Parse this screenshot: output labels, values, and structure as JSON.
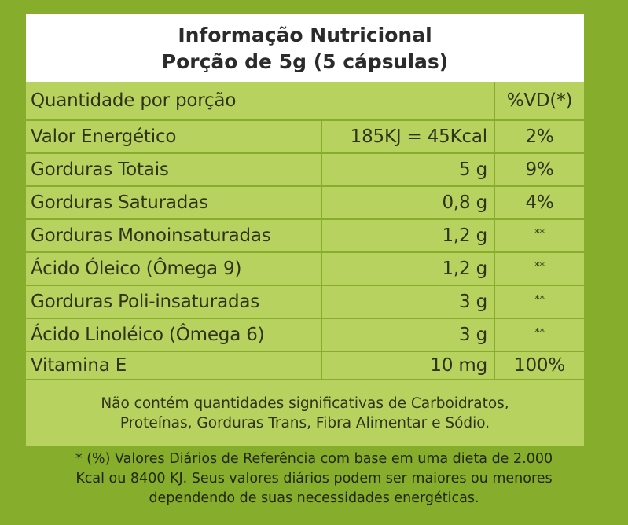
{
  "title": {
    "line1": "Informação Nutricional",
    "line2": "Porção de 5g (5 cápsulas)"
  },
  "header": {
    "quantity_label": "Quantidade por porção",
    "vd_label": "%VD(*)"
  },
  "rows": [
    {
      "name": "Valor Energético",
      "amount": "185KJ = 45Kcal",
      "vd": "2%"
    },
    {
      "name": "Gorduras Totais",
      "amount": "5 g",
      "vd": "9%"
    },
    {
      "name": "Gorduras Saturadas",
      "amount": "0,8 g",
      "vd": "4%"
    },
    {
      "name": "Gorduras Monoinsaturadas",
      "amount": "1,2 g",
      "vd": "**"
    },
    {
      "name": "Ácido Óleico (Ômega 9)",
      "amount": "1,2 g",
      "vd": "**"
    },
    {
      "name": "Gorduras Poli-insaturadas",
      "amount": "3 g",
      "vd": "**"
    },
    {
      "name": "Ácido Linoléico (Ômega 6)",
      "amount": "3 g",
      "vd": "**"
    },
    {
      "name": "Vitamina E",
      "amount": "10 mg",
      "vd": "100%"
    }
  ],
  "note": {
    "line1": "Não contém quantidades significativas de Carboidratos,",
    "line2": "Proteínas, Gorduras Trans, Fibra Alimentar e Sódio."
  },
  "footnote": {
    "line1": "* (%) Valores Diários de Referência com base em uma dieta de 2.000",
    "line2": "Kcal ou 8400 KJ. Seus valores diários podem ser maiores ou menores",
    "line3": "dependendo de suas necessidades energéticas."
  },
  "colors": {
    "background_green": "#86ad2b",
    "cell_green": "#b8d25f",
    "panel_white": "#ffffff"
  }
}
